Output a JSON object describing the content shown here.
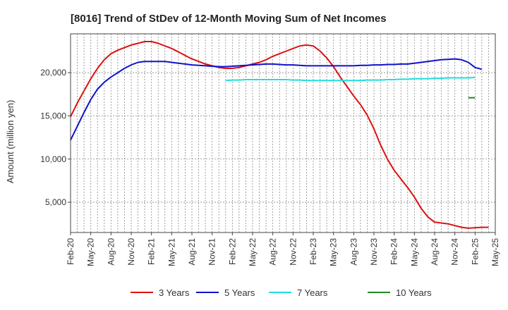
{
  "chart_data": {
    "type": "line",
    "title": "[8016]  Trend of StDev of 12-Month Moving Sum of Net Incomes",
    "xlabel": "",
    "ylabel": "Amount (million yen)",
    "x_ticks": [
      "Feb-20",
      "May-20",
      "Aug-20",
      "Nov-20",
      "Feb-21",
      "May-21",
      "Aug-21",
      "Nov-21",
      "Feb-22",
      "May-22",
      "Aug-22",
      "Nov-22",
      "Feb-23",
      "May-23",
      "Aug-23",
      "Nov-23",
      "Feb-24",
      "May-24",
      "Aug-24",
      "Nov-24",
      "Feb-25",
      "May-25"
    ],
    "y_ticks": [
      5000,
      10000,
      15000,
      20000
    ],
    "y_tick_labels": [
      "5,000",
      "10,000",
      "15,000",
      "20,000"
    ],
    "ylim": [
      1500,
      24500
    ],
    "grid": true,
    "legend_position": "bottom",
    "series": [
      {
        "name": "3 Years",
        "color": "#dd1111",
        "start": "Feb-20",
        "values": [
          14900,
          16500,
          17900,
          19300,
          20500,
          21500,
          22200,
          22600,
          22900,
          23200,
          23400,
          23600,
          23600,
          23400,
          23100,
          22800,
          22400,
          22000,
          21600,
          21300,
          21000,
          20800,
          20600,
          20500,
          20500,
          20600,
          20800,
          21000,
          21200,
          21500,
          21900,
          22200,
          22500,
          22800,
          23100,
          23200,
          23100,
          22500,
          21700,
          20700,
          19500,
          18400,
          17300,
          16300,
          15100,
          13500,
          11600,
          10000,
          8700,
          7700,
          6700,
          5600,
          4300,
          3300,
          2700,
          2600,
          2500,
          2300,
          2100,
          2000,
          2050,
          2100,
          2100
        ]
      },
      {
        "name": "5 Years",
        "color": "#1111cc",
        "start": "Feb-20",
        "values": [
          12200,
          13800,
          15400,
          16900,
          18100,
          18900,
          19500,
          20000,
          20500,
          20900,
          21200,
          21300,
          21300,
          21300,
          21300,
          21200,
          21100,
          21000,
          20900,
          20850,
          20800,
          20750,
          20700,
          20700,
          20750,
          20800,
          20850,
          20900,
          20950,
          21000,
          21000,
          20950,
          20900,
          20900,
          20850,
          20800,
          20800,
          20800,
          20800,
          20800,
          20800,
          20800,
          20800,
          20850,
          20850,
          20900,
          20900,
          20950,
          20950,
          21000,
          21000,
          21100,
          21200,
          21300,
          21400,
          21500,
          21550,
          21600,
          21500,
          21200,
          20600,
          20400
        ]
      },
      {
        "name": "7 Years",
        "color": "#22dddd",
        "start": "Jan-22",
        "values": [
          19100,
          19150,
          19150,
          19200,
          19200,
          19200,
          19200,
          19200,
          19200,
          19200,
          19150,
          19150,
          19100,
          19100,
          19100,
          19100,
          19100,
          19100,
          19100,
          19100,
          19100,
          19150,
          19150,
          19150,
          19200,
          19200,
          19250,
          19250,
          19300,
          19300,
          19300,
          19350,
          19350,
          19400,
          19400,
          19400,
          19400,
          19450
        ]
      },
      {
        "name": "10 Years",
        "color": "#228822",
        "start": "Jan-25",
        "values": [
          17100,
          17100
        ]
      }
    ]
  }
}
